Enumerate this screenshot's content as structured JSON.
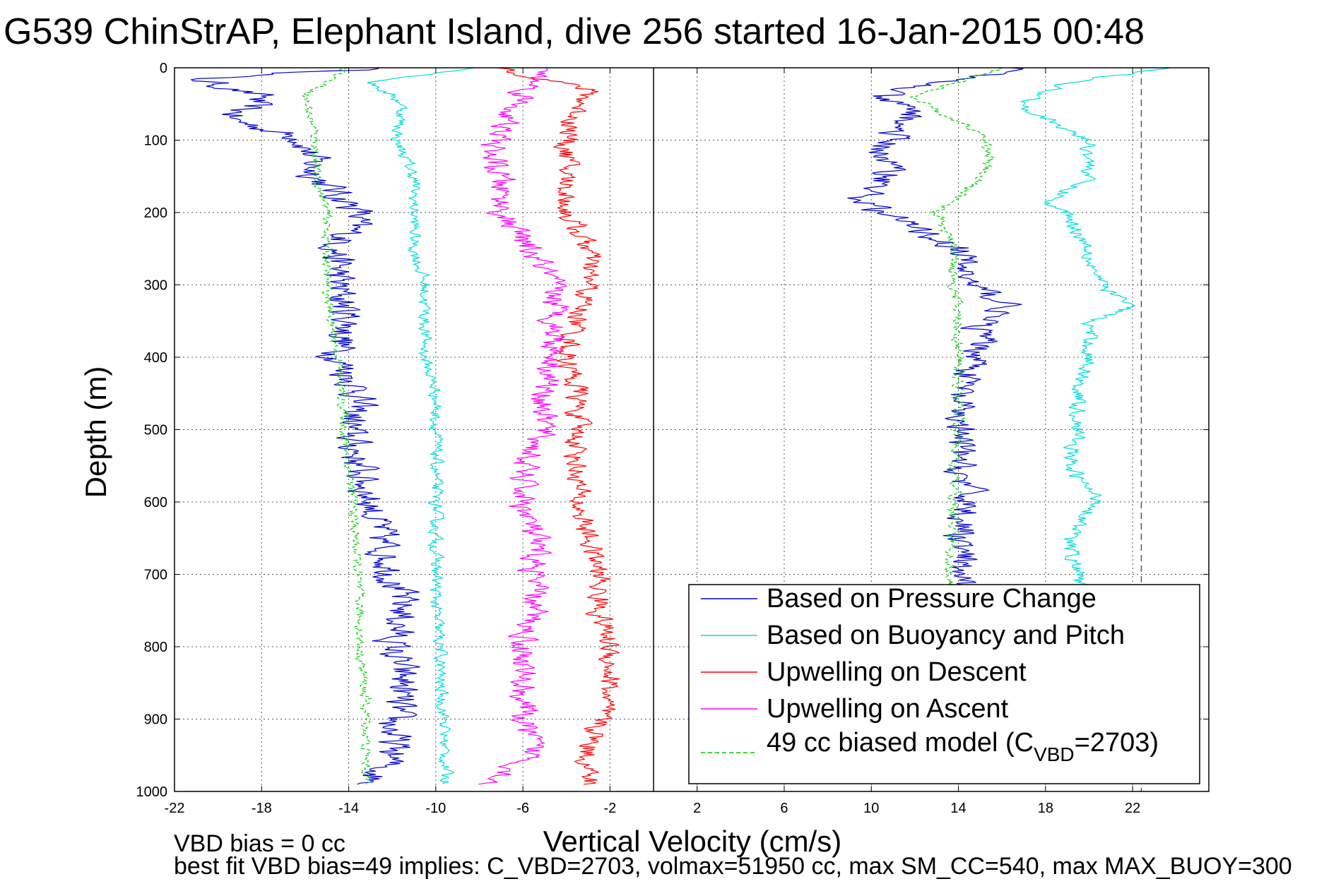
{
  "chart_data": {
    "type": "line",
    "title": "G539 ChinStrAP, Elephant Island, dive 256 started 16-Jan-2015 00:48",
    "xlabel": "Vertical Velocity (cm/s)",
    "ylabel": "Depth (m)",
    "xlim": [
      -22,
      25.5
    ],
    "ylim": [
      0,
      1000
    ],
    "y_reversed": true,
    "x_ticks": [
      -22,
      -18,
      -14,
      -10,
      -6,
      -2,
      2,
      6,
      10,
      14,
      18,
      22
    ],
    "y_ticks": [
      0,
      100,
      200,
      300,
      400,
      500,
      600,
      700,
      800,
      900,
      1000
    ],
    "grid": true,
    "reference_lines": [
      {
        "x": 0,
        "style": "solid",
        "color": "#000000"
      },
      {
        "x": 22.4,
        "style": "dashed",
        "color": "#555555"
      }
    ],
    "legend_position": "bottom-right",
    "legend": [
      {
        "label": "Based on Pressure Change",
        "color": "#0000cc",
        "style": "solid"
      },
      {
        "label": "Based on Buoyancy and Pitch",
        "color": "#00dddd",
        "style": "solid"
      },
      {
        "label": "Upwelling on Descent",
        "color": "#ff0000",
        "style": "solid"
      },
      {
        "label": "Upwelling on Ascent",
        "color": "#ff00ff",
        "style": "solid"
      },
      {
        "label": "49 cc biased model (C",
        "label_sub": "VBD",
        "label_tail": "=2703)",
        "color": "#00cc00",
        "style": "dashed"
      }
    ],
    "series": [
      {
        "key": "pressure_descent",
        "color": "#0000cc",
        "style": "solid",
        "noise": 1.3,
        "points": [
          [
            0,
            -12
          ],
          [
            15,
            -21
          ],
          [
            40,
            -18
          ],
          [
            70,
            -19.5
          ],
          [
            100,
            -16
          ],
          [
            150,
            -15.5
          ],
          [
            200,
            -13.5
          ],
          [
            250,
            -14.5
          ],
          [
            300,
            -14.5
          ],
          [
            350,
            -14
          ],
          [
            400,
            -14.5
          ],
          [
            450,
            -13.5
          ],
          [
            500,
            -14
          ],
          [
            550,
            -13.5
          ],
          [
            600,
            -13
          ],
          [
            650,
            -12.5
          ],
          [
            700,
            -12
          ],
          [
            750,
            -11.5
          ],
          [
            800,
            -12
          ],
          [
            850,
            -11.5
          ],
          [
            900,
            -12
          ],
          [
            950,
            -12
          ],
          [
            990,
            -13
          ]
        ]
      },
      {
        "key": "buoyancy_descent",
        "color": "#00dddd",
        "style": "solid",
        "noise": 0.45,
        "points": [
          [
            0,
            -8
          ],
          [
            20,
            -13
          ],
          [
            50,
            -11.5
          ],
          [
            100,
            -11.8
          ],
          [
            150,
            -11
          ],
          [
            200,
            -11
          ],
          [
            250,
            -11
          ],
          [
            300,
            -10.5
          ],
          [
            350,
            -10.5
          ],
          [
            400,
            -10.5
          ],
          [
            450,
            -10
          ],
          [
            500,
            -10
          ],
          [
            550,
            -10
          ],
          [
            600,
            -10
          ],
          [
            650,
            -10
          ],
          [
            700,
            -10
          ],
          [
            750,
            -10
          ],
          [
            800,
            -9.8
          ],
          [
            850,
            -9.8
          ],
          [
            900,
            -9.6
          ],
          [
            950,
            -9.6
          ],
          [
            990,
            -9.5
          ]
        ]
      },
      {
        "key": "model_descent",
        "color": "#00cc00",
        "style": "dashed",
        "noise": 0.35,
        "points": [
          [
            0,
            -14
          ],
          [
            20,
            -15
          ],
          [
            40,
            -16
          ],
          [
            100,
            -15.5
          ],
          [
            150,
            -15.5
          ],
          [
            200,
            -15
          ],
          [
            250,
            -15
          ],
          [
            300,
            -15
          ],
          [
            350,
            -14.8
          ],
          [
            400,
            -14.5
          ],
          [
            450,
            -14.3
          ],
          [
            500,
            -14.2
          ],
          [
            550,
            -14
          ],
          [
            600,
            -13.8
          ],
          [
            650,
            -13.7
          ],
          [
            700,
            -13.6
          ],
          [
            750,
            -13.5
          ],
          [
            800,
            -13.5
          ],
          [
            850,
            -13.3
          ],
          [
            900,
            -13.2
          ],
          [
            950,
            -13.2
          ],
          [
            990,
            -13.2
          ]
        ]
      },
      {
        "key": "upwelling_descent",
        "color": "#ff0000",
        "style": "solid",
        "noise": 0.85,
        "points": [
          [
            0,
            -7
          ],
          [
            30,
            -3
          ],
          [
            60,
            -3.5
          ],
          [
            100,
            -4
          ],
          [
            150,
            -4
          ],
          [
            200,
            -4
          ],
          [
            250,
            -3
          ],
          [
            300,
            -3
          ],
          [
            350,
            -3.5
          ],
          [
            400,
            -4
          ],
          [
            450,
            -3.5
          ],
          [
            500,
            -3.5
          ],
          [
            550,
            -3.5
          ],
          [
            600,
            -3.5
          ],
          [
            650,
            -3
          ],
          [
            700,
            -2.5
          ],
          [
            750,
            -2.5
          ],
          [
            800,
            -2
          ],
          [
            850,
            -2
          ],
          [
            900,
            -2.5
          ],
          [
            950,
            -3
          ],
          [
            990,
            -3
          ]
        ]
      },
      {
        "key": "upwelling_ascent",
        "color": "#ff00ff",
        "style": "solid",
        "noise": 1.0,
        "points": [
          [
            0,
            -5
          ],
          [
            40,
            -6
          ],
          [
            80,
            -7
          ],
          [
            120,
            -7.5
          ],
          [
            160,
            -7
          ],
          [
            200,
            -7
          ],
          [
            240,
            -6
          ],
          [
            280,
            -5
          ],
          [
            320,
            -4.5
          ],
          [
            360,
            -4.5
          ],
          [
            400,
            -4.5
          ],
          [
            450,
            -5
          ],
          [
            500,
            -5
          ],
          [
            550,
            -6
          ],
          [
            600,
            -6
          ],
          [
            650,
            -5.5
          ],
          [
            700,
            -5.5
          ],
          [
            750,
            -5.5
          ],
          [
            800,
            -6
          ],
          [
            850,
            -6
          ],
          [
            900,
            -6
          ],
          [
            950,
            -5.5
          ],
          [
            990,
            -7.5
          ]
        ]
      },
      {
        "key": "pressure_ascent",
        "color": "#0000cc",
        "style": "solid",
        "noise": 1.2,
        "points": [
          [
            0,
            17
          ],
          [
            20,
            13
          ],
          [
            40,
            10
          ],
          [
            60,
            12
          ],
          [
            90,
            11
          ],
          [
            120,
            10.5
          ],
          [
            150,
            11
          ],
          [
            180,
            9.5
          ],
          [
            200,
            10.5
          ],
          [
            250,
            14
          ],
          [
            300,
            14.5
          ],
          [
            330,
            16.5
          ],
          [
            350,
            15
          ],
          [
            400,
            15
          ],
          [
            450,
            14
          ],
          [
            500,
            14
          ],
          [
            550,
            14
          ],
          [
            600,
            14.5
          ],
          [
            650,
            14
          ],
          [
            700,
            14
          ],
          [
            720,
            14
          ]
        ]
      },
      {
        "key": "buoyancy_ascent",
        "color": "#00dddd",
        "style": "solid",
        "noise": 0.6,
        "points": [
          [
            0,
            24
          ],
          [
            20,
            19
          ],
          [
            50,
            17
          ],
          [
            80,
            18.5
          ],
          [
            100,
            20
          ],
          [
            150,
            20
          ],
          [
            190,
            18
          ],
          [
            200,
            19
          ],
          [
            250,
            20
          ],
          [
            300,
            20.5
          ],
          [
            330,
            22
          ],
          [
            350,
            20
          ],
          [
            400,
            20
          ],
          [
            450,
            19.5
          ],
          [
            500,
            19.5
          ],
          [
            550,
            19
          ],
          [
            600,
            20.5
          ],
          [
            650,
            19
          ],
          [
            700,
            19.5
          ],
          [
            720,
            19.5
          ]
        ]
      },
      {
        "key": "model_ascent",
        "color": "#00cc00",
        "style": "dashed",
        "noise": 0.4,
        "points": [
          [
            0,
            16
          ],
          [
            20,
            14
          ],
          [
            40,
            12
          ],
          [
            60,
            13
          ],
          [
            90,
            15
          ],
          [
            120,
            15.5
          ],
          [
            150,
            15
          ],
          [
            180,
            14
          ],
          [
            200,
            13
          ],
          [
            250,
            13.8
          ],
          [
            300,
            13.8
          ],
          [
            350,
            14
          ],
          [
            400,
            14
          ],
          [
            450,
            14
          ],
          [
            500,
            14
          ],
          [
            550,
            13.8
          ],
          [
            600,
            13.8
          ],
          [
            650,
            13.7
          ],
          [
            700,
            13.6
          ],
          [
            720,
            13.6
          ]
        ]
      }
    ]
  },
  "footer": {
    "line1": "VBD bias = 0 cc",
    "line2": "best fit VBD bias=49 implies: C_VBD=2703, volmax=51950 cc, max SM_CC=540, max MAX_BUOY=300"
  }
}
